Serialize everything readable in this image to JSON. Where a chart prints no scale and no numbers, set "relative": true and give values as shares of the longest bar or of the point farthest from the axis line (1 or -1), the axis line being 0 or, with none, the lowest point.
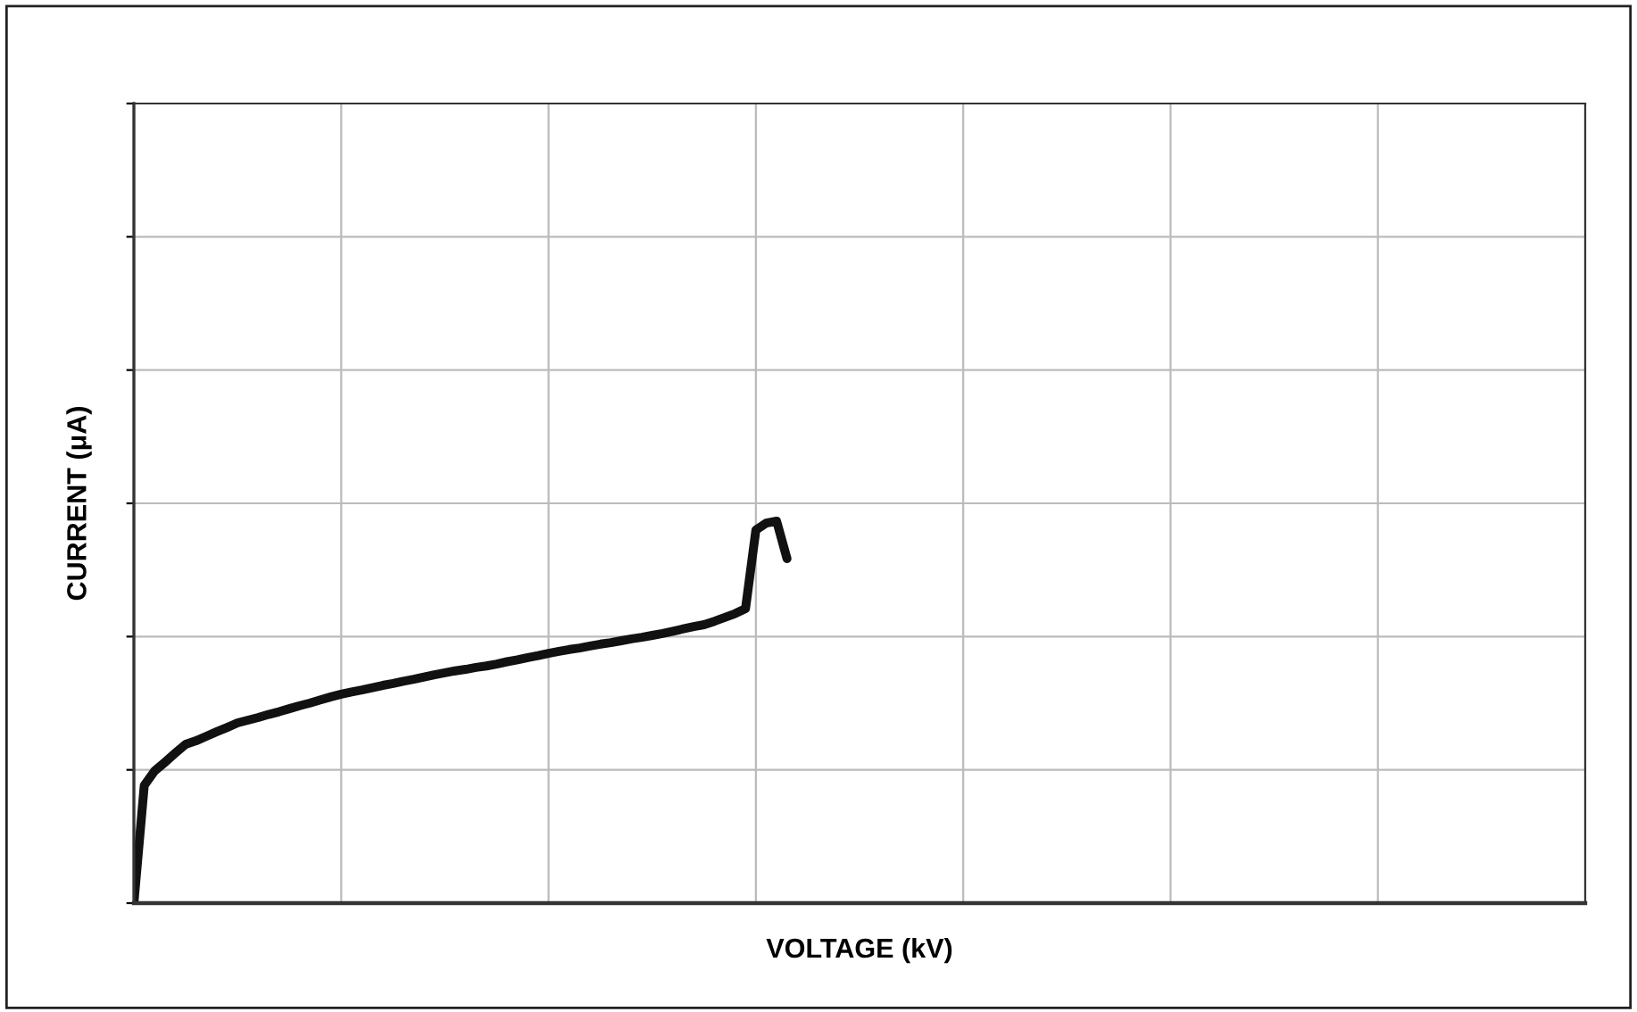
{
  "chart_data": {
    "type": "line",
    "relative": true,
    "xlabel": "VOLTAGE (kV)",
    "ylabel": "CURRENT (μA)",
    "grid": true,
    "tick_labels": false,
    "categories": [
      null,
      null,
      null,
      null,
      null,
      null,
      null,
      null,
      null,
      null,
      null,
      null,
      null,
      null,
      null,
      null,
      null,
      null,
      null,
      null,
      null,
      null,
      null,
      null,
      null,
      null,
      null,
      null,
      null,
      null,
      null,
      null,
      null,
      null,
      null,
      null,
      null,
      null,
      null,
      null,
      null,
      null,
      null,
      null,
      null,
      null,
      null,
      null,
      null,
      null,
      null,
      null,
      null,
      null,
      null,
      null,
      null,
      null,
      null,
      null,
      null,
      null,
      null,
      null,
      null,
      null,
      null,
      null,
      null,
      null,
      null,
      null,
      null,
      null,
      null,
      null,
      null,
      null,
      null,
      null,
      null,
      null,
      null,
      null,
      null,
      null,
      null,
      null,
      null,
      null,
      null,
      null,
      null,
      null,
      null,
      null,
      null,
      null,
      null,
      null,
      null,
      null,
      null,
      null,
      null,
      null,
      null,
      null,
      null,
      null,
      null,
      null,
      null,
      null,
      null,
      null,
      null,
      null,
      null,
      null,
      null,
      null,
      null,
      null,
      null,
      null,
      null,
      null,
      null,
      null,
      null,
      null,
      null,
      null,
      null,
      null,
      null,
      null,
      null,
      null,
      null
    ],
    "series": [
      {
        "color": "#111111",
        "values": [
          0,
          0.308,
          0.346,
          0.369,
          0.393,
          0.416,
          0.425,
          0.437,
          0.449,
          0.46,
          0.472,
          0.479,
          0.486,
          0.494,
          0.501,
          0.509,
          0.517,
          0.524,
          0.532,
          0.54,
          0.547,
          0.553,
          0.558,
          0.564,
          0.57,
          0.575,
          0.581,
          0.586,
          0.592,
          0.598,
          0.603,
          0.608,
          0.612,
          0.617,
          0.621,
          0.626,
          0.632,
          0.637,
          0.643,
          0.648,
          0.654,
          0.659,
          0.664,
          0.668,
          0.673,
          0.678,
          0.682,
          0.687,
          0.692,
          0.696,
          0.701,
          0.706,
          0.712,
          0.718,
          0.724,
          0.729,
          0.738,
          0.748,
          0.758,
          0.771,
          0.977,
          0.995,
          1,
          0.902,
          null,
          null,
          null,
          null,
          null,
          null,
          null,
          null,
          null,
          null,
          null,
          null,
          null,
          null,
          null,
          null,
          null,
          null,
          null,
          null,
          null,
          null,
          null,
          null,
          null,
          null,
          null,
          null,
          null,
          null,
          null,
          null,
          null,
          null,
          null,
          null,
          null,
          null,
          null,
          null,
          null,
          null,
          null,
          null,
          null,
          null,
          null,
          null,
          null,
          null,
          null,
          null,
          null,
          null,
          null,
          null,
          null,
          null,
          null,
          null,
          null,
          null,
          null,
          null,
          null,
          null,
          null,
          null,
          null,
          null,
          null,
          null,
          null,
          null,
          null,
          null,
          null
        ]
      }
    ]
  }
}
